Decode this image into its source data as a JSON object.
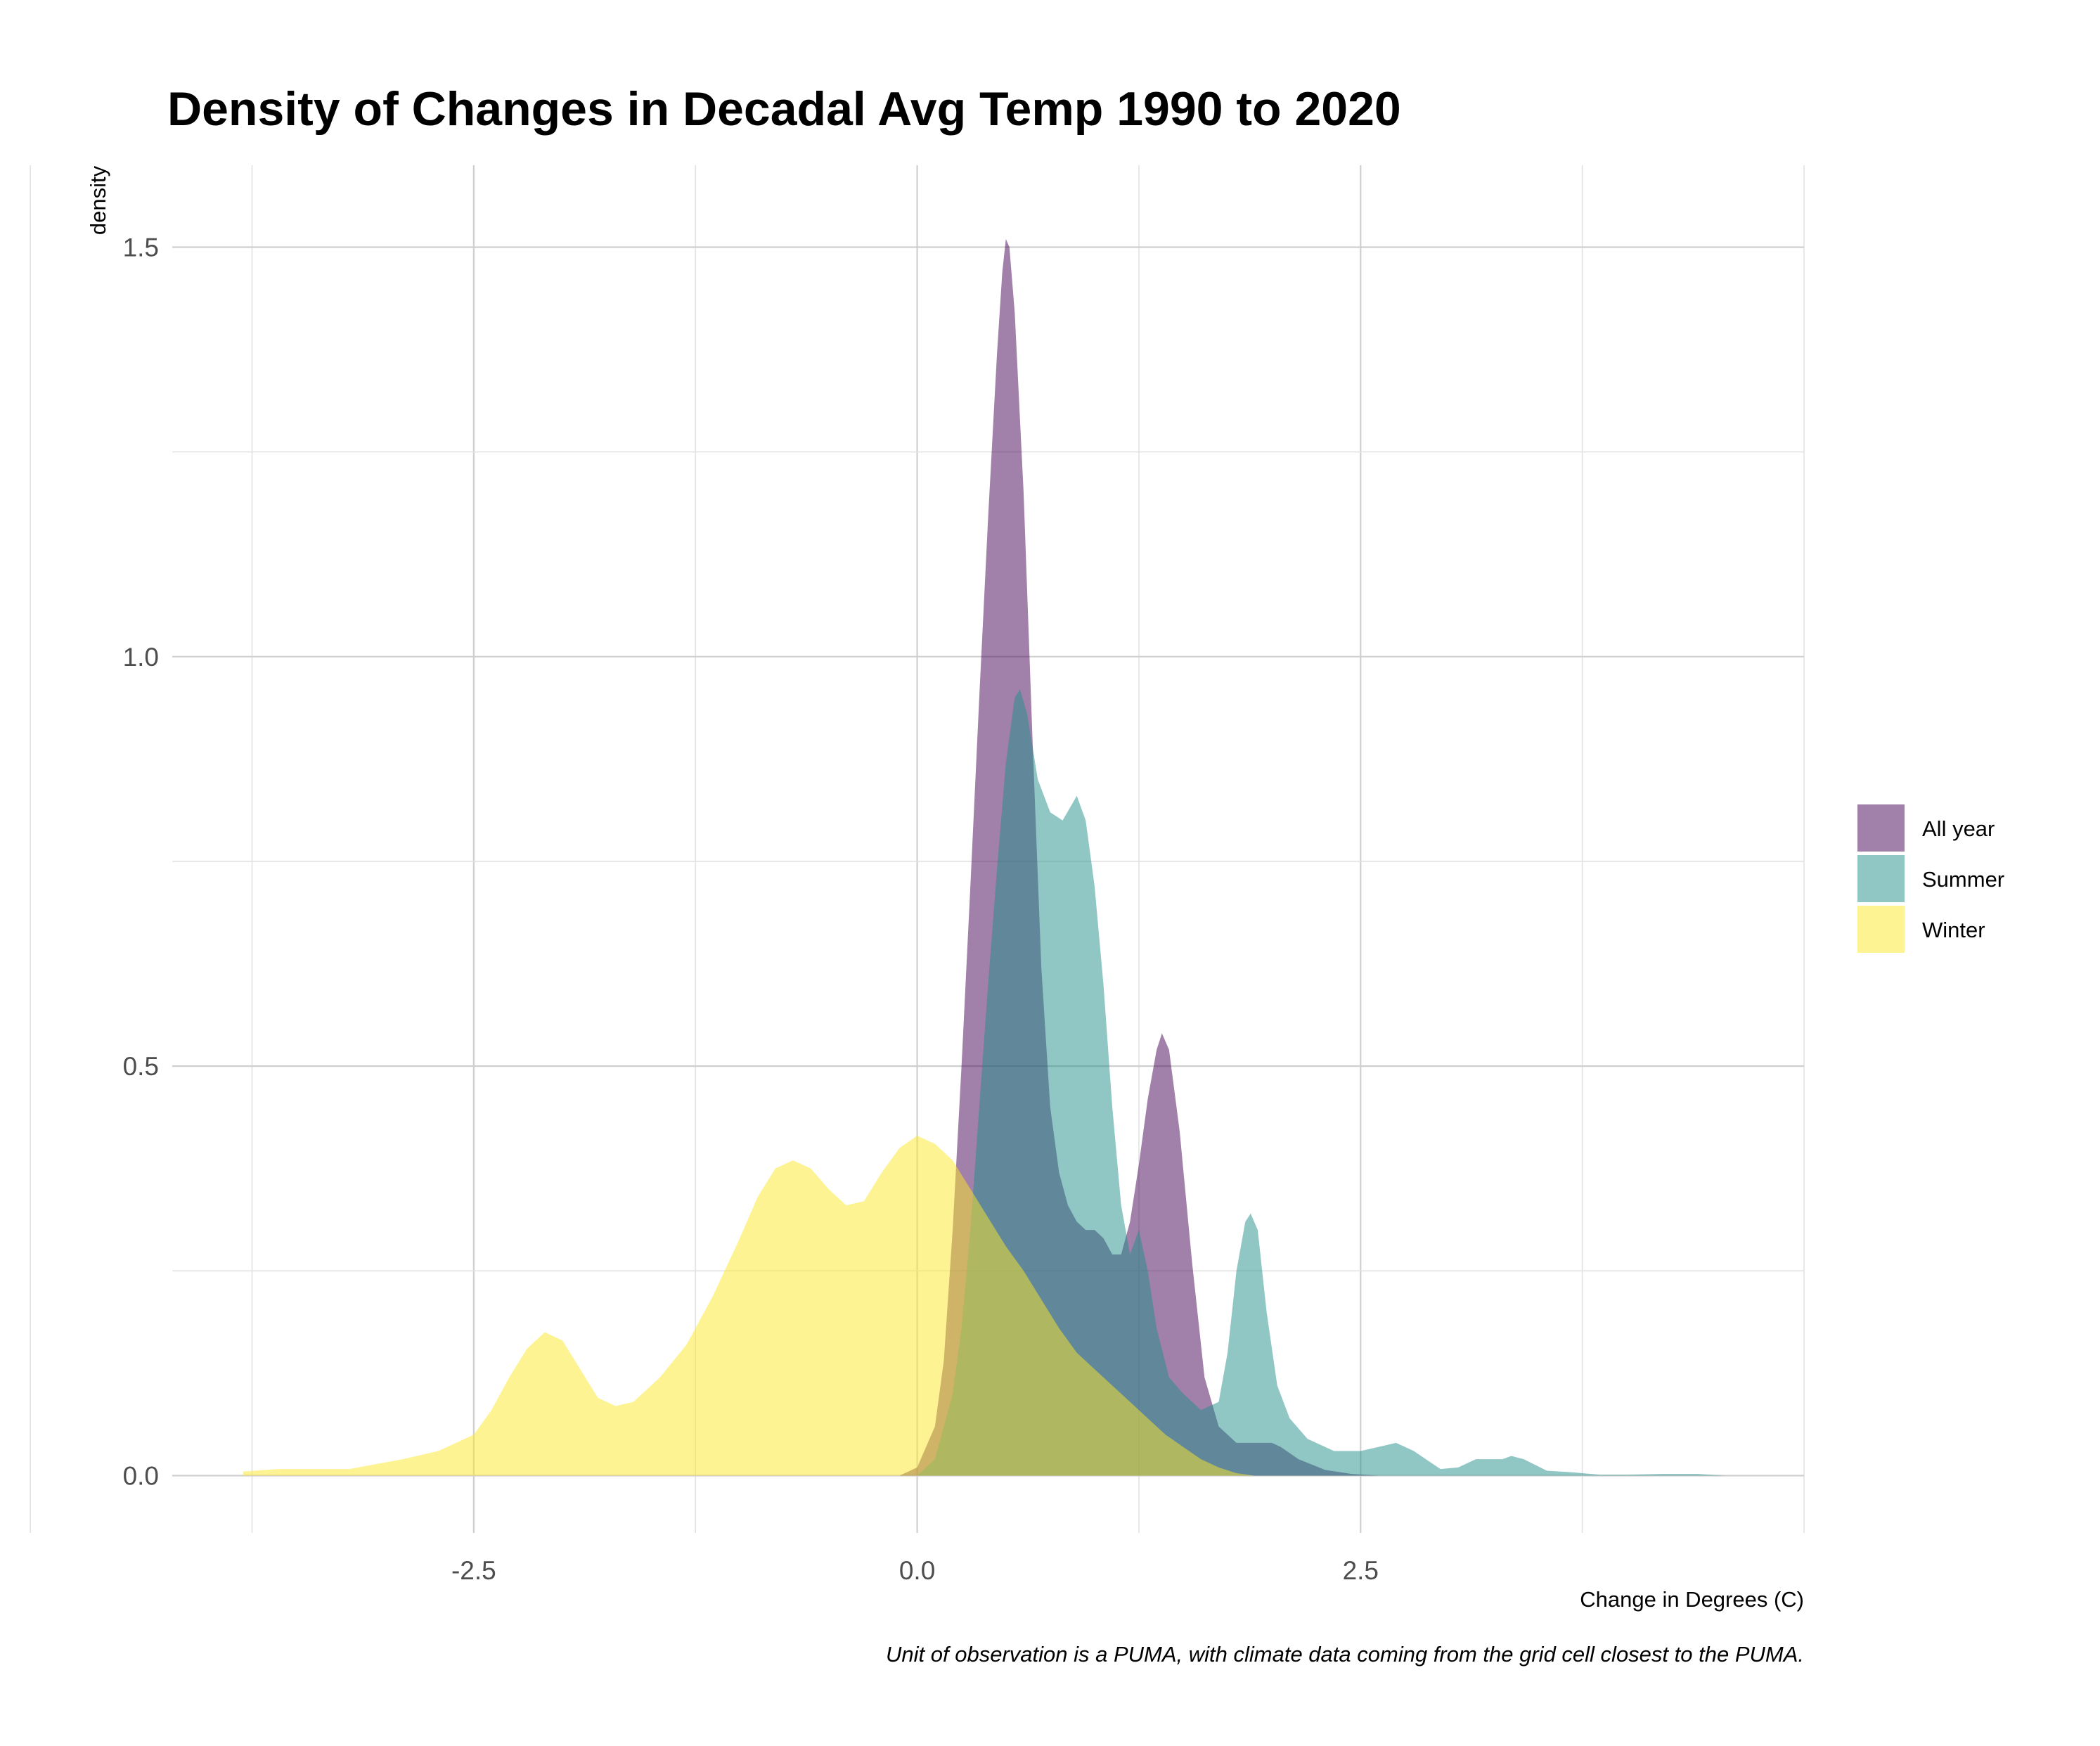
{
  "chart_data": {
    "type": "area",
    "title": "Density of Changes in Decadal Avg Temp 1990 to 2020",
    "xlabel": "Change in Degrees (C)",
    "ylabel": "density",
    "caption": "Unit of observation is a PUMA, with climate data coming from the grid cell closest to the PUMA.",
    "xlim": [
      -4.2,
      5.0
    ],
    "ylim": [
      -0.07,
      1.6
    ],
    "x_ticks": [
      -2.5,
      0.0,
      2.5
    ],
    "x_tick_labels": [
      "-2.5",
      "0.0",
      "2.5"
    ],
    "y_ticks": [
      0.0,
      0.5,
      1.0,
      1.5
    ],
    "y_tick_labels": [
      "0.0",
      "0.5",
      "1.0",
      "1.5"
    ],
    "grid": true,
    "legend_position": "right",
    "series": [
      {
        "name": "All year",
        "color": "#440154",
        "points": [
          [
            -0.1,
            0.0
          ],
          [
            0.0,
            0.01
          ],
          [
            0.1,
            0.06
          ],
          [
            0.15,
            0.14
          ],
          [
            0.2,
            0.3
          ],
          [
            0.25,
            0.5
          ],
          [
            0.3,
            0.72
          ],
          [
            0.35,
            0.95
          ],
          [
            0.4,
            1.17
          ],
          [
            0.45,
            1.37
          ],
          [
            0.48,
            1.47
          ],
          [
            0.5,
            1.51
          ],
          [
            0.52,
            1.5
          ],
          [
            0.55,
            1.42
          ],
          [
            0.6,
            1.2
          ],
          [
            0.65,
            0.9
          ],
          [
            0.7,
            0.62
          ],
          [
            0.75,
            0.45
          ],
          [
            0.8,
            0.37
          ],
          [
            0.85,
            0.33
          ],
          [
            0.9,
            0.31
          ],
          [
            0.95,
            0.3
          ],
          [
            1.0,
            0.3
          ],
          [
            1.05,
            0.29
          ],
          [
            1.1,
            0.27
          ],
          [
            1.15,
            0.27
          ],
          [
            1.2,
            0.31
          ],
          [
            1.25,
            0.38
          ],
          [
            1.3,
            0.46
          ],
          [
            1.35,
            0.52
          ],
          [
            1.38,
            0.54
          ],
          [
            1.42,
            0.52
          ],
          [
            1.48,
            0.42
          ],
          [
            1.55,
            0.26
          ],
          [
            1.62,
            0.12
          ],
          [
            1.7,
            0.06
          ],
          [
            1.8,
            0.04
          ],
          [
            1.9,
            0.04
          ],
          [
            2.0,
            0.04
          ],
          [
            2.05,
            0.035
          ],
          [
            2.15,
            0.02
          ],
          [
            2.3,
            0.007
          ],
          [
            2.45,
            0.002
          ],
          [
            2.6,
            0.0
          ]
        ]
      },
      {
        "name": "Summer",
        "color": "#21908C",
        "points": [
          [
            0.0,
            0.0
          ],
          [
            0.1,
            0.02
          ],
          [
            0.2,
            0.1
          ],
          [
            0.25,
            0.18
          ],
          [
            0.3,
            0.3
          ],
          [
            0.35,
            0.45
          ],
          [
            0.4,
            0.6
          ],
          [
            0.45,
            0.74
          ],
          [
            0.5,
            0.87
          ],
          [
            0.55,
            0.95
          ],
          [
            0.58,
            0.96
          ],
          [
            0.62,
            0.93
          ],
          [
            0.68,
            0.85
          ],
          [
            0.75,
            0.81
          ],
          [
            0.82,
            0.8
          ],
          [
            0.9,
            0.83
          ],
          [
            0.95,
            0.8
          ],
          [
            1.0,
            0.72
          ],
          [
            1.05,
            0.6
          ],
          [
            1.1,
            0.45
          ],
          [
            1.15,
            0.33
          ],
          [
            1.2,
            0.27
          ],
          [
            1.25,
            0.3
          ],
          [
            1.3,
            0.25
          ],
          [
            1.35,
            0.18
          ],
          [
            1.42,
            0.12
          ],
          [
            1.5,
            0.1
          ],
          [
            1.6,
            0.08
          ],
          [
            1.7,
            0.09
          ],
          [
            1.75,
            0.15
          ],
          [
            1.8,
            0.25
          ],
          [
            1.85,
            0.31
          ],
          [
            1.88,
            0.32
          ],
          [
            1.92,
            0.3
          ],
          [
            1.97,
            0.2
          ],
          [
            2.03,
            0.11
          ],
          [
            2.1,
            0.07
          ],
          [
            2.2,
            0.045
          ],
          [
            2.35,
            0.03
          ],
          [
            2.5,
            0.03
          ],
          [
            2.6,
            0.035
          ],
          [
            2.7,
            0.04
          ],
          [
            2.8,
            0.03
          ],
          [
            2.95,
            0.008
          ],
          [
            3.05,
            0.01
          ],
          [
            3.15,
            0.02
          ],
          [
            3.3,
            0.02
          ],
          [
            3.35,
            0.024
          ],
          [
            3.42,
            0.02
          ],
          [
            3.55,
            0.006
          ],
          [
            3.7,
            0.004
          ],
          [
            3.85,
            0.001
          ],
          [
            4.0,
            0.001
          ],
          [
            4.2,
            0.002
          ],
          [
            4.4,
            0.002
          ],
          [
            4.55,
            0.0
          ]
        ]
      },
      {
        "name": "Winter",
        "color": "#FDE725",
        "points": [
          [
            -3.8,
            0.005
          ],
          [
            -3.6,
            0.008
          ],
          [
            -3.2,
            0.008
          ],
          [
            -2.9,
            0.02
          ],
          [
            -2.7,
            0.03
          ],
          [
            -2.5,
            0.05
          ],
          [
            -2.4,
            0.08
          ],
          [
            -2.3,
            0.12
          ],
          [
            -2.2,
            0.155
          ],
          [
            -2.1,
            0.175
          ],
          [
            -2.0,
            0.165
          ],
          [
            -1.9,
            0.13
          ],
          [
            -1.8,
            0.095
          ],
          [
            -1.7,
            0.085
          ],
          [
            -1.6,
            0.09
          ],
          [
            -1.45,
            0.12
          ],
          [
            -1.3,
            0.16
          ],
          [
            -1.15,
            0.22
          ],
          [
            -1.0,
            0.29
          ],
          [
            -0.9,
            0.34
          ],
          [
            -0.8,
            0.375
          ],
          [
            -0.7,
            0.385
          ],
          [
            -0.6,
            0.375
          ],
          [
            -0.5,
            0.35
          ],
          [
            -0.4,
            0.33
          ],
          [
            -0.3,
            0.335
          ],
          [
            -0.2,
            0.37
          ],
          [
            -0.1,
            0.4
          ],
          [
            0.0,
            0.415
          ],
          [
            0.1,
            0.405
          ],
          [
            0.2,
            0.385
          ],
          [
            0.3,
            0.35
          ],
          [
            0.4,
            0.315
          ],
          [
            0.5,
            0.28
          ],
          [
            0.6,
            0.25
          ],
          [
            0.7,
            0.215
          ],
          [
            0.8,
            0.18
          ],
          [
            0.9,
            0.15
          ],
          [
            1.0,
            0.13
          ],
          [
            1.1,
            0.11
          ],
          [
            1.2,
            0.09
          ],
          [
            1.3,
            0.07
          ],
          [
            1.4,
            0.05
          ],
          [
            1.5,
            0.035
          ],
          [
            1.6,
            0.02
          ],
          [
            1.7,
            0.01
          ],
          [
            1.8,
            0.003
          ],
          [
            1.9,
            0.0
          ]
        ]
      }
    ]
  }
}
